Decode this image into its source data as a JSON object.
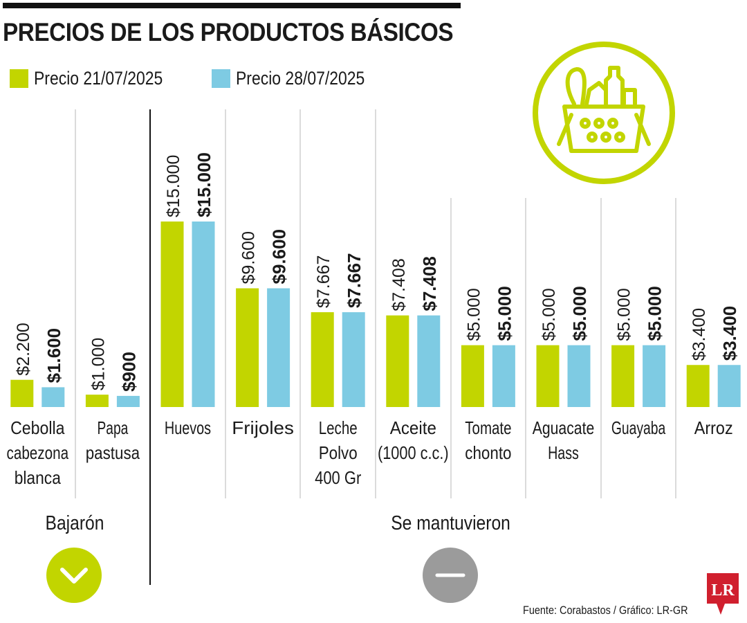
{
  "title": "PRECIOS DE LOS PRODUCTOS BÁSICOS",
  "legend": [
    {
      "label": "Precio 21/07/2025",
      "color": "#c2d500"
    },
    {
      "label": "Precio 28/07/2025",
      "color": "#7ecbe3"
    }
  ],
  "groups": [
    {
      "label": "Bajarón",
      "icon": "chevron-down-icon",
      "color": "#c2d500"
    },
    {
      "label": "Se mantuvieron",
      "icon": "minus-icon",
      "color": "#9b9b9b"
    }
  ],
  "source": "Fuente: Corabastos / Gráfico: LR-GR",
  "logo": "LR",
  "chart_data": {
    "type": "bar",
    "categories": [
      [
        "Cebolla",
        "cabezona",
        "blanca"
      ],
      [
        "Papa",
        "pastusa"
      ],
      [
        "Huevos"
      ],
      [
        "Frijoles"
      ],
      [
        "Leche",
        "Polvo",
        "400 Gr"
      ],
      [
        "Aceite",
        "(1000 c.c.)"
      ],
      [
        "Tomate",
        "chonto"
      ],
      [
        "Aguacate",
        "Hass"
      ],
      [
        "Guayaba"
      ],
      [
        "Arroz"
      ]
    ],
    "series": [
      {
        "name": "Precio 21/07/2025",
        "color": "#c2d500",
        "values": [
          2200,
          1000,
          15000,
          9600,
          7667,
          7408,
          5000,
          5000,
          5000,
          3400
        ],
        "labels": [
          "$2.200",
          "$1.000",
          "$15.000",
          "$9.600",
          "$7.667",
          "$7.408",
          "$5.000",
          "$5.000",
          "$5.000",
          "$3.400"
        ]
      },
      {
        "name": "Precio 28/07/2025",
        "color": "#7ecbe3",
        "values": [
          1600,
          900,
          15000,
          9600,
          7667,
          7408,
          5000,
          5000,
          5000,
          3400
        ],
        "labels": [
          "$1.600",
          "$900",
          "$15.000",
          "$9.600",
          "$7.667",
          "$7.408",
          "$5.000",
          "$5.000",
          "$5.000",
          "$3.400"
        ]
      }
    ],
    "ylim": [
      0,
      15000
    ],
    "grid": false
  }
}
